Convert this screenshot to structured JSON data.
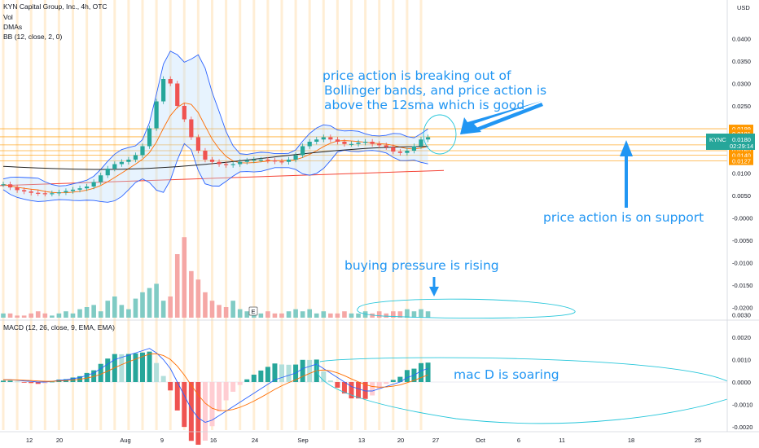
{
  "header": {
    "title": "KYN Capital Group, Inc., 4h, OTC",
    "indicators": [
      "Vol",
      "DMAs",
      "BB (12, close, 2, 0)"
    ],
    "macd_label": "MACD (12, 26, close, 9, EMA, EMA)"
  },
  "annotations": {
    "breakout": [
      "price action is breaking out of",
      "Bollinger bands, and price action is",
      "above the 12sma which is good"
    ],
    "support": "price action is on support",
    "buying": "buying pressure is rising",
    "macd": "mac D is soaring"
  },
  "price_axis": {
    "currency": "USD",
    "ticks": [
      "0.0400",
      "0.0350",
      "0.0300",
      "0.0250",
      "0.0200",
      "0.0150",
      "0.0100",
      "0.0050",
      "-0.0000",
      "-0.0050",
      "-0.0100",
      "-0.0150",
      "-0.0200"
    ],
    "symbol_tag": {
      "symbol": "KYNC",
      "price": "0.0180",
      "countdown": "02:29:14"
    },
    "level_tags": [
      "0.0199",
      "0.0181",
      "0.0163",
      "0.0150",
      "0.0140",
      "0.0127"
    ]
  },
  "macd_axis": {
    "ticks": [
      "0.0030",
      "0.0020",
      "0.0010",
      "0.0000",
      "-0.0010",
      "-0.0020"
    ]
  },
  "time_axis": {
    "labels": [
      "12",
      "20",
      "Aug",
      "9",
      "16",
      "24",
      "Sep",
      "13",
      "20",
      "27",
      "Oct",
      "6",
      "11",
      "18",
      "25"
    ]
  },
  "volume_marker": "E",
  "colors": {
    "up": "#26a69a",
    "down": "#ef5350",
    "annotation": "#2196f3",
    "level_line": "#ff9800",
    "sma_red": "#f44336",
    "bb": "#2962ff",
    "symbol_tag": "#26a69a"
  },
  "chart_data": {
    "type": "candlestick",
    "y_range": [
      -0.021,
      0.044
    ],
    "close_series": [
      0.0075,
      0.0068,
      0.0062,
      0.0059,
      0.0056,
      0.0055,
      0.0054,
      0.0055,
      0.0057,
      0.006,
      0.0063,
      0.0066,
      0.007,
      0.008,
      0.0095,
      0.011,
      0.012,
      0.0125,
      0.013,
      0.014,
      0.016,
      0.02,
      0.026,
      0.031,
      0.03,
      0.025,
      0.022,
      0.018,
      0.015,
      0.013,
      0.0125,
      0.012,
      0.0118,
      0.012,
      0.0125,
      0.0128,
      0.013,
      0.013,
      0.0128,
      0.0126,
      0.0125,
      0.013,
      0.014,
      0.016,
      0.017,
      0.0175,
      0.018,
      0.0175,
      0.017,
      0.0165,
      0.0165,
      0.0168,
      0.017,
      0.0165,
      0.0162,
      0.0158,
      0.0148,
      0.0145,
      0.015,
      0.016,
      0.0175,
      0.018
    ],
    "macd_series": [
      0.0001,
      0.0001,
      8e-05,
      5e-05,
      3e-05,
      0.0,
      0.0,
      3e-05,
      8e-05,
      0.0001,
      0.00015,
      0.0002,
      0.0003,
      0.0004,
      0.0006,
      0.0008,
      0.001,
      0.0011,
      0.0012,
      0.0013,
      0.0014,
      0.0015,
      0.0013,
      0.001,
      0.0006,
      0.0,
      -0.0006,
      -0.0012,
      -0.0016,
      -0.0018,
      -0.0017,
      -0.0015,
      -0.0013,
      -0.0011,
      -0.0009,
      -0.0007,
      -0.0005,
      -0.0003,
      -0.0001,
      0.0001,
      0.0002,
      0.0003,
      0.0004,
      0.0006,
      0.0007,
      0.0008,
      0.0006,
      0.0004,
      0.0002,
      0.0,
      -0.0002,
      -0.0003,
      -0.0004,
      -0.0004,
      -0.0003,
      -0.0002,
      -0.0001,
      0.0,
      0.0002,
      0.0003,
      0.0005,
      0.0006
    ],
    "volume_series": [
      2,
      2,
      1,
      1,
      2,
      3,
      2,
      1,
      2,
      3,
      2,
      4,
      5,
      6,
      3,
      8,
      10,
      6,
      4,
      9,
      12,
      14,
      16,
      8,
      10,
      30,
      38,
      22,
      18,
      12,
      8,
      6,
      5,
      8,
      4,
      3,
      3,
      2,
      3,
      2,
      2,
      3,
      4,
      3,
      4,
      2,
      3,
      2,
      2,
      3,
      2,
      2,
      3,
      2,
      3,
      2,
      3,
      3,
      4,
      3,
      4,
      3
    ]
  }
}
